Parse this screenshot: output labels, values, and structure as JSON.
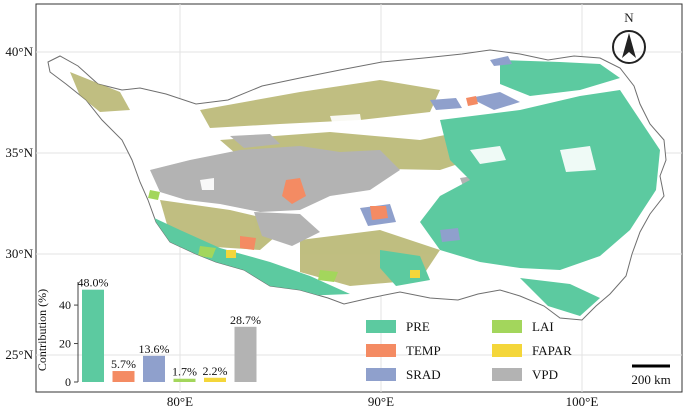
{
  "map": {
    "lat_labels": [
      "40°N",
      "35°N",
      "30°N",
      "25°N"
    ],
    "lon_labels": [
      "80°E",
      "90°E",
      "100°E"
    ],
    "north_label": "N",
    "scale_label": "200 km"
  },
  "legend": {
    "items": [
      {
        "key": "PRE",
        "label": "PRE",
        "color": "#5ccaa0"
      },
      {
        "key": "LAI",
        "label": "LAI",
        "color": "#a3d65c"
      },
      {
        "key": "TEMP",
        "label": "TEMP",
        "color": "#f48b63"
      },
      {
        "key": "FAPAR",
        "label": "FAPAR",
        "color": "#f4d63a"
      },
      {
        "key": "SRAD",
        "label": "SRAD",
        "color": "#8fa0cc"
      },
      {
        "key": "VPD",
        "label": "VPD",
        "color": "#b3b3b3"
      }
    ]
  },
  "chart_data": {
    "type": "bar",
    "categories": [
      "PRE",
      "TEMP",
      "SRAD",
      "LAI",
      "FAPAR",
      "VPD"
    ],
    "values": [
      48.0,
      5.7,
      13.6,
      1.7,
      2.2,
      28.7
    ],
    "value_labels": [
      "48.0%",
      "5.7%",
      "13.6%",
      "1.7%",
      "2.2%",
      "28.7%"
    ],
    "colors": [
      "#5ccaa0",
      "#f48b63",
      "#8fa0cc",
      "#a3d65c",
      "#f4d63a",
      "#b3b3b3"
    ],
    "ylabel": "Contribution (%)",
    "yticks": [
      "0",
      "20",
      "40"
    ],
    "ylim": [
      0,
      52
    ]
  }
}
